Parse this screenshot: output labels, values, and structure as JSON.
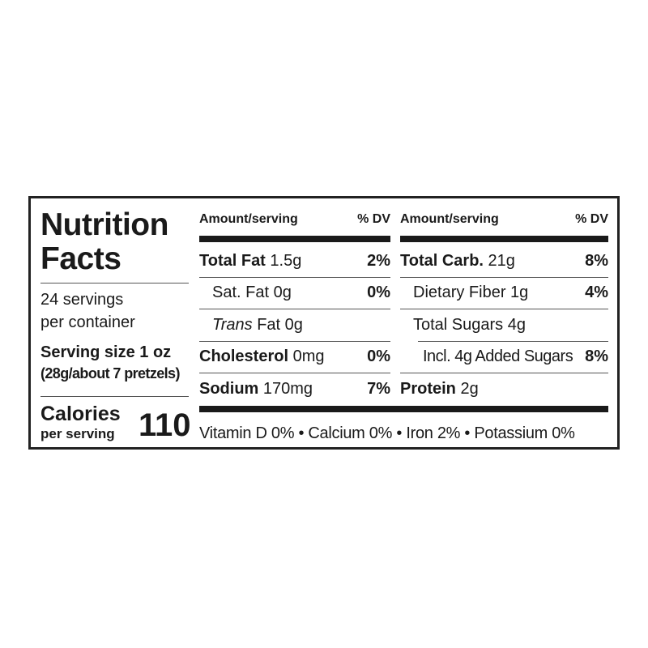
{
  "left": {
    "title_line1": "Nutrition",
    "title_line2": "Facts",
    "servings_line1": "24 servings",
    "servings_line2": "per container",
    "serving_size": "Serving size 1 oz",
    "serving_size_detail": "(28g/about 7 pretzels)",
    "calories_label": "Calories",
    "calories_sub": "per serving",
    "calories_value": "110"
  },
  "col1": {
    "header_amount": "Amount/serving",
    "header_dv": "% DV",
    "rows": [
      {
        "label": "Total Fat",
        "amount": "1.5g",
        "dv": "2%"
      },
      {
        "label": "Sat. Fat",
        "amount": "0g",
        "dv": "0%"
      },
      {
        "label": "Trans",
        "label_rest": "Fat",
        "amount": "0g",
        "dv": ""
      },
      {
        "label": "Cholesterol",
        "amount": "0mg",
        "dv": "0%"
      },
      {
        "label": "Sodium",
        "amount": "170mg",
        "dv": "7%"
      }
    ]
  },
  "col2": {
    "header_amount": "Amount/serving",
    "header_dv": "% DV",
    "rows": [
      {
        "label": "Total Carb.",
        "amount": "21g",
        "dv": "8%"
      },
      {
        "label": "Dietary Fiber",
        "amount": "1g",
        "dv": "4%"
      },
      {
        "label": "Total Sugars",
        "amount": "4g",
        "dv": ""
      },
      {
        "label": "Incl. 4g Added Sugars",
        "dv": "8%"
      },
      {
        "label": "Protein",
        "amount": "2g",
        "dv": ""
      }
    ]
  },
  "footer": "Vitamin D 0% • Calcium 0% • Iron 2% • Potassium 0%"
}
